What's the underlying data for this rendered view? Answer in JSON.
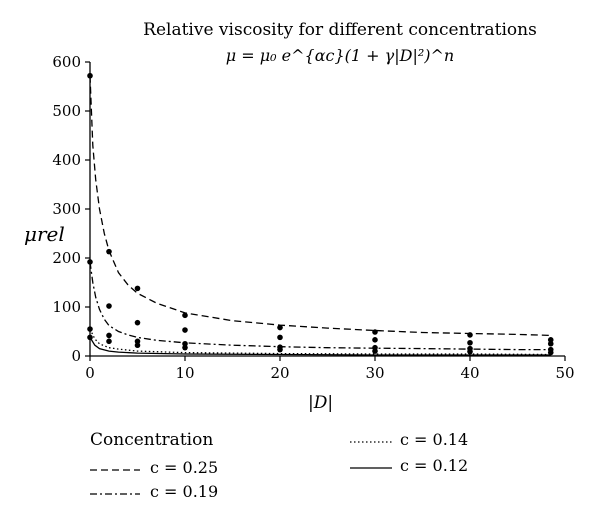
{
  "chart_data": {
    "type": "scatter",
    "title": "Relative viscosity for different concentrations",
    "subtitle": "μ = μ₀ e^{αc}(1 + γ|D|²)^n",
    "xlabel": "|D|",
    "ylabel": "μrel",
    "xlim": [
      0,
      50
    ],
    "ylim": [
      0,
      600
    ],
    "xticks": [
      "0",
      "10",
      "20",
      "30",
      "40",
      "50"
    ],
    "yticks": [
      "0",
      "100",
      "200",
      "300",
      "400",
      "500",
      "600"
    ],
    "grid": false,
    "legend_title": "Concentration",
    "legend_position": "bottom",
    "series": [
      {
        "name": "c = 0.25",
        "dash": "dashed",
        "curve_x": [
          0,
          0.3,
          0.6,
          1,
          1.5,
          2,
          3,
          4,
          5,
          7,
          10,
          15,
          20,
          25,
          30,
          35,
          40,
          45,
          48.5
        ],
        "curve_y": [
          572,
          430,
          360,
          300,
          250,
          215,
          170,
          145,
          128,
          108,
          88,
          72,
          63,
          57,
          52,
          48,
          46,
          44,
          42
        ],
        "points_x": [
          0,
          2,
          5,
          10,
          20,
          30,
          40,
          48.5
        ],
        "points_y": [
          572,
          213,
          138,
          83,
          58,
          49,
          43,
          33
        ]
      },
      {
        "name": "c = 0.19",
        "dash": "dashdot",
        "curve_x": [
          0,
          0.3,
          0.6,
          1,
          1.5,
          2,
          3,
          4,
          5,
          7,
          10,
          15,
          20,
          25,
          30,
          35,
          40,
          45,
          48.5
        ],
        "curve_y": [
          192,
          150,
          120,
          95,
          75,
          62,
          50,
          43,
          38,
          32,
          27,
          22,
          19,
          17,
          16,
          15,
          14,
          13,
          13
        ],
        "points_x": [
          0,
          2,
          5,
          10,
          20,
          30,
          40,
          48.5
        ],
        "points_y": [
          192,
          102,
          68,
          53,
          38,
          33,
          27,
          25
        ]
      },
      {
        "name": "c = 0.14",
        "dash": "dotted",
        "curve_x": [
          0,
          0.5,
          1,
          2,
          3,
          5,
          10,
          20,
          30,
          40,
          48.5
        ],
        "curve_y": [
          55,
          35,
          25,
          17,
          14,
          10,
          7,
          5,
          4,
          4,
          3
        ],
        "points_x": [
          0,
          2,
          5,
          10,
          20,
          30,
          40,
          48.5
        ],
        "points_y": [
          55,
          42,
          30,
          25,
          18,
          17,
          15,
          13
        ]
      },
      {
        "name": "c = 0.12",
        "dash": "solid",
        "curve_x": [
          0,
          0.5,
          1,
          2,
          3,
          5,
          10,
          20,
          30,
          40,
          48.5
        ],
        "curve_y": [
          38,
          22,
          15,
          10,
          8,
          6,
          4,
          3,
          2,
          2,
          2
        ],
        "points_x": [
          0,
          2,
          5,
          10,
          20,
          30,
          40,
          48.5
        ],
        "points_y": [
          38,
          30,
          22,
          17,
          13,
          10,
          9,
          7
        ]
      }
    ]
  }
}
